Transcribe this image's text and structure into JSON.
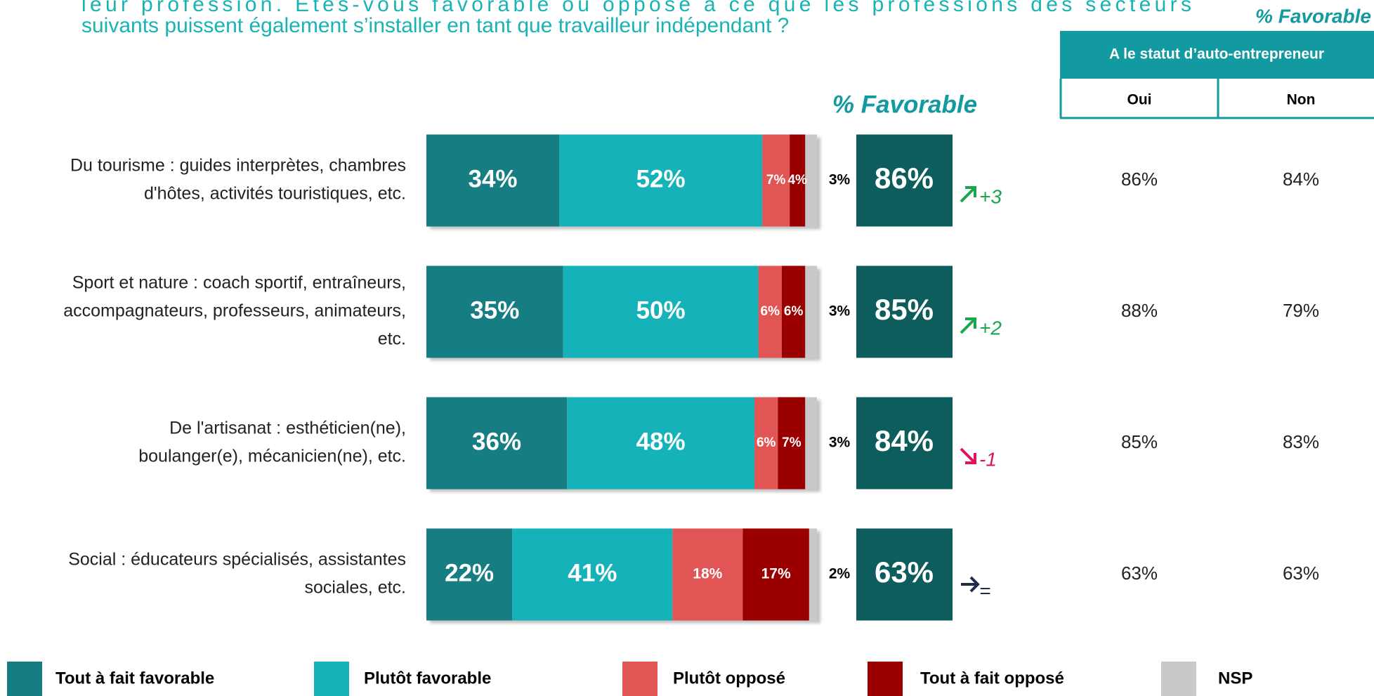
{
  "chart_data": {
    "type": "bar",
    "orientation": "horizontal",
    "stacked": true,
    "title_lines": [
      "leur profession. Etes-vous favorable ou opposé à ce que les professions des secteurs",
      "suivants puissent également s’installer en tant que travailleur indépendant ?"
    ],
    "categories": [
      [
        "Du tourisme : guides interprètes, chambres",
        "d'hôtes, activités touristiques, etc."
      ],
      [
        "Sport et nature : coach sportif, entraîneurs,",
        "accompagnateurs, professeurs, animateurs,",
        "etc."
      ],
      [
        "De l'artisanat : esthéticien(ne),",
        "boulanger(e), mécanicien(ne), etc."
      ],
      [
        "Social : éducateurs spécialisés, assistantes",
        "sociales, etc."
      ]
    ],
    "xlim": [
      0,
      100
    ],
    "series": [
      {
        "name": "Tout à fait favorable",
        "color": "#167d83",
        "values": [
          34,
          35,
          36,
          22
        ],
        "value_labels": [
          "34%",
          "35%",
          "36%",
          "22%"
        ]
      },
      {
        "name": "Plutôt favorable",
        "color": "#16b2b9",
        "values": [
          52,
          50,
          48,
          41
        ],
        "value_labels": [
          "52%",
          "50%",
          "48%",
          "41%"
        ]
      },
      {
        "name": "Plutôt opposé",
        "color": "#e25555",
        "values": [
          7,
          6,
          6,
          18
        ],
        "value_labels": [
          "7%",
          "6%",
          "6%",
          "18%"
        ]
      },
      {
        "name": "Tout à fait opposé",
        "color": "#9b0000",
        "values": [
          4,
          6,
          7,
          17
        ],
        "value_labels": [
          "4%",
          "6%",
          "7%",
          "17%"
        ]
      },
      {
        "name": "NSP",
        "color": "#c9c9c9",
        "values": [
          3,
          3,
          3,
          2
        ],
        "value_labels": [
          "3%",
          "3%",
          "3%",
          "2%"
        ]
      }
    ],
    "favorable": {
      "title": "% Favorable",
      "color": "#0e5d5d",
      "values": [
        86,
        85,
        84,
        63
      ],
      "value_labels": [
        "86%",
        "85%",
        "84%",
        "63%"
      ]
    },
    "change": {
      "values": [
        3,
        2,
        -1,
        0
      ],
      "value_labels": [
        "+3",
        "+2",
        "-1",
        "="
      ],
      "up_color": "#1aa64a",
      "down_color": "#e0115f",
      "flat_color": "#1f2d4d"
    }
  },
  "table": {
    "title": "% Favorable",
    "header": "A le statut d’auto-entrepreneur",
    "columns": [
      "Oui",
      "Non"
    ],
    "rows": [
      [
        "86%",
        "84%"
      ],
      [
        "88%",
        "79%"
      ],
      [
        "85%",
        "83%"
      ],
      [
        "63%",
        "63%"
      ]
    ]
  }
}
